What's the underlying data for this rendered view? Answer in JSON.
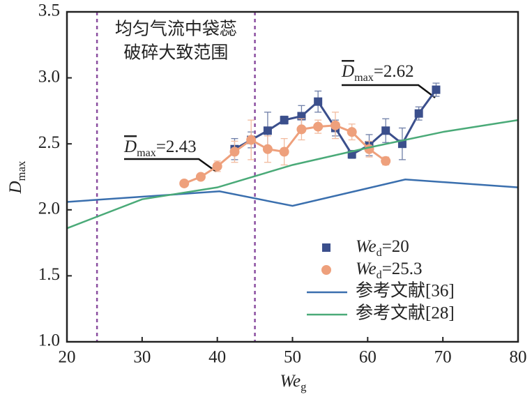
{
  "chart_data": {
    "type": "line",
    "x_label": {
      "base": "We",
      "sub": "g"
    },
    "y_label": {
      "base": "D",
      "sub": "max"
    },
    "xlim": [
      20,
      80
    ],
    "ylim": [
      1.0,
      3.5
    ],
    "xticks": [
      20,
      30,
      40,
      50,
      60,
      70,
      80
    ],
    "yticks": [
      {
        "value": 1.0,
        "label": "1.0"
      },
      1.5,
      {
        "value": 2.0,
        "label": "2.0"
      },
      2.5,
      {
        "value": 3.0,
        "label": "3.0"
      },
      3.5
    ],
    "grid": false,
    "vlines": [
      24,
      45
    ],
    "region_label": [
      "均匀气流中袋蕊",
      "破碎大致范围"
    ],
    "annotations": [
      {
        "base": "D",
        "sub": "max",
        "rest": "=2.43"
      },
      {
        "base": "D",
        "sub": "max",
        "rest": "=2.62"
      }
    ],
    "legend": "lower right",
    "series": [
      {
        "name": {
          "base": "We",
          "sub": "d",
          "rest": "=20"
        },
        "color": "#3b4f8c",
        "marker": "square",
        "x": [
          42.3,
          44.5,
          46.7,
          48.9,
          51.2,
          53.4,
          55.7,
          57.9,
          60.2,
          62.4,
          64.6,
          66.8,
          69.1
        ],
        "values": [
          2.46,
          2.53,
          2.6,
          2.68,
          2.71,
          2.82,
          2.62,
          2.42,
          2.49,
          2.6,
          2.5,
          2.73,
          2.91
        ],
        "errors": [
          0.08,
          0.06,
          0.14,
          0.03,
          0.08,
          0.08,
          0.06,
          0.03,
          0.08,
          0.09,
          0.12,
          0.05,
          0.05
        ]
      },
      {
        "name": {
          "base": "We",
          "sub": "d",
          "rest": "=25.3"
        },
        "color": "#eea07c",
        "marker": "circle",
        "x": [
          35.6,
          37.8,
          40.0,
          42.3,
          44.5,
          46.7,
          48.9,
          51.2,
          53.4,
          55.7,
          57.9,
          60.2,
          62.4
        ],
        "values": [
          2.2,
          2.25,
          2.33,
          2.44,
          2.53,
          2.46,
          2.44,
          2.61,
          2.63,
          2.64,
          2.59,
          2.46,
          2.37
        ],
        "errors": [
          0.02,
          0.02,
          0.04,
          0.08,
          0.15,
          0.1,
          0.1,
          0.08,
          0.05,
          0.1,
          0.06,
          0.06,
          0.03
        ]
      },
      {
        "name": "参考文献[36]",
        "color": "#3a6fae",
        "marker": "none",
        "x": [
          20,
          40.3,
          50,
          65,
          80
        ],
        "values": [
          2.06,
          2.14,
          2.03,
          2.23,
          2.17
        ]
      },
      {
        "name": "参考文献[28]",
        "color": "#4aaa78",
        "marker": "none",
        "x": [
          20,
          30,
          40,
          50,
          60,
          70,
          80
        ],
        "values": [
          1.86,
          2.08,
          2.17,
          2.34,
          2.47,
          2.59,
          2.68
        ]
      }
    ]
  }
}
